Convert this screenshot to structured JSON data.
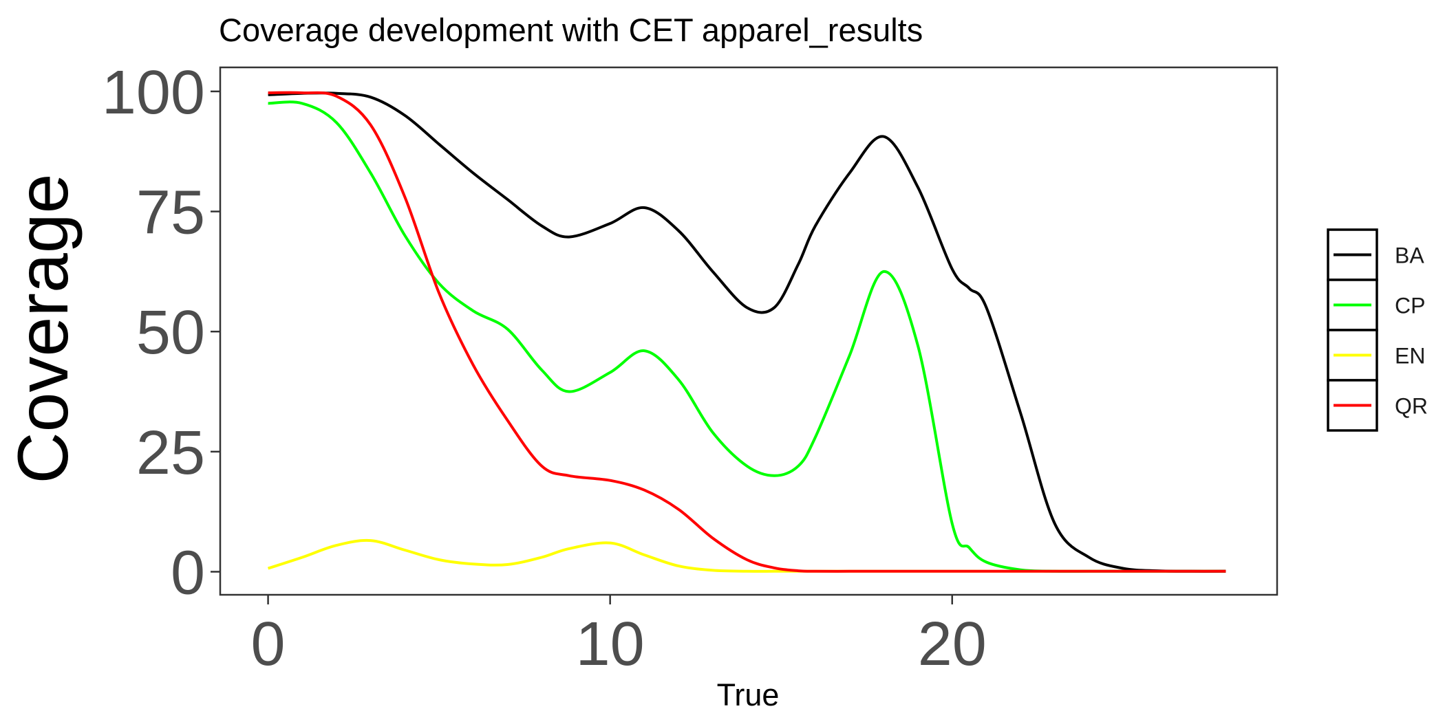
{
  "chart_data": {
    "type": "line",
    "title": "Coverage development with CET apparel_results",
    "xlabel": "True",
    "ylabel": "Coverage",
    "xlim": [
      -1.4,
      29.5
    ],
    "ylim": [
      -4.8,
      105
    ],
    "xticks": [
      0,
      10,
      20
    ],
    "xtick_labels": [
      "0",
      "10",
      "20"
    ],
    "yticks": [
      0,
      25,
      50,
      75,
      100
    ],
    "ytick_labels": [
      "0",
      "25",
      "50",
      "75",
      "100"
    ],
    "grid": false,
    "legend": {
      "position": "right",
      "entries": [
        "BA",
        "CP",
        "EN",
        "QR"
      ]
    },
    "x": [
      0,
      1,
      2,
      3,
      4,
      5,
      6,
      7,
      8,
      8.8,
      10,
      11,
      12,
      13,
      14,
      14.8,
      15.5,
      16,
      17,
      18,
      19,
      20,
      20.5,
      21,
      22,
      23,
      24,
      25,
      26,
      27,
      28
    ],
    "series": [
      {
        "name": "BA",
        "color": "#000000",
        "values": [
          99.3,
          99.6,
          99.6,
          98.8,
          95,
          89,
          83,
          77.5,
          72,
          69.7,
          72.5,
          75.8,
          71,
          62.5,
          55,
          55,
          64,
          72,
          83,
          90.6,
          80,
          63,
          59,
          55,
          33,
          10,
          3,
          0.7,
          0.2,
          0.1,
          0.1
        ]
      },
      {
        "name": "CP",
        "color": "#00ff00",
        "values": [
          97.5,
          97.5,
          93.5,
          83,
          70,
          60,
          54.3,
          50.5,
          42,
          37.5,
          41.5,
          46,
          40,
          29,
          22,
          20,
          22,
          28,
          45,
          62.5,
          47,
          10,
          5,
          2,
          0.4,
          0.1,
          0.1,
          0.1,
          0.1,
          0.1,
          0.1
        ]
      },
      {
        "name": "EN",
        "color": "#ffff00",
        "values": [
          0.7,
          3,
          5.5,
          6.5,
          4.5,
          2.5,
          1.6,
          1.5,
          3,
          4.8,
          6,
          3.5,
          1.2,
          0.3,
          0.1,
          0.1,
          0.1,
          0.1,
          0.1,
          0.1,
          0.1,
          0.1,
          0.1,
          0.1,
          0.1,
          0.1,
          0.1,
          0.1,
          0.1,
          0.1,
          0.1
        ]
      },
      {
        "name": "QR",
        "color": "#ff0000",
        "values": [
          99.7,
          99.7,
          99,
          93,
          78,
          58,
          43,
          31.5,
          22,
          20,
          19,
          17,
          13,
          7,
          2.5,
          0.8,
          0.2,
          0.1,
          0.1,
          0.1,
          0.1,
          0.1,
          0.1,
          0.1,
          0.1,
          0.1,
          0.1,
          0.1,
          0.1,
          0.1,
          0.1
        ]
      }
    ]
  }
}
